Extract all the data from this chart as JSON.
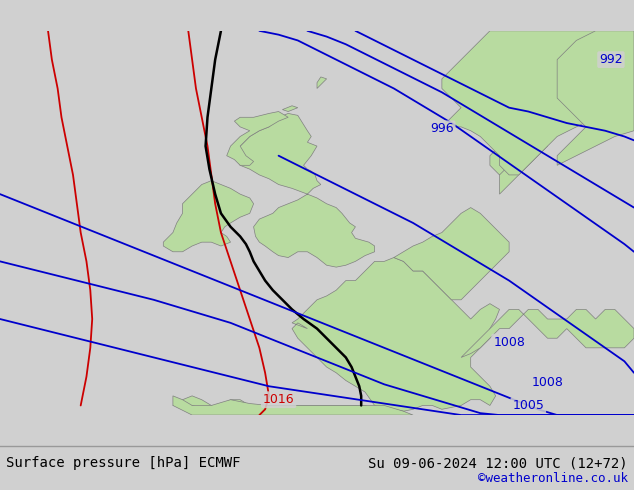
{
  "title_left": "Surface pressure [hPa] ECMWF",
  "title_right": "Su 09-06-2024 12:00 UTC (12+72)",
  "credit": "©weatheronline.co.uk",
  "bg_color": "#d0d0d0",
  "land_color": "#b8dba0",
  "sea_color": "#d0d0d0",
  "border_color": "#808080",
  "isobar_blue": "#0000cc",
  "isobar_black": "#000000",
  "isobar_red": "#cc0000",
  "font_size_title": 10,
  "font_size_credit": 9,
  "font_size_isobar": 9,
  "lon_min": -18,
  "lon_max": 15,
  "lat_min": 43,
  "lat_max": 63
}
